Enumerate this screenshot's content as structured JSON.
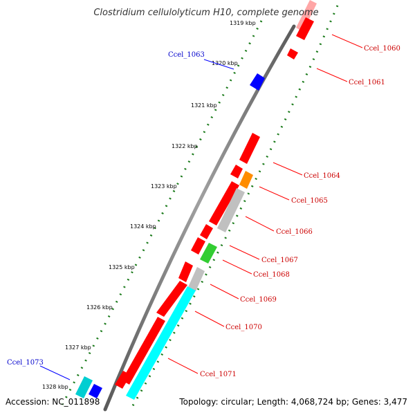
{
  "title": "Clostridium cellulolyticum H10, complete genome",
  "accession": "Accession: NC_011898",
  "summary": "Topology: circular; Length: 4,068,724 bp; Genes: 3,477",
  "colors": {
    "backbone": "#808080",
    "forward_cds": "#ff0000",
    "reverse_cds": "#0000ff",
    "other_gene": "#00ffff",
    "rna": "#ff8c00",
    "misc_feature": "#32cd32",
    "pseudo": "#c0c0c0",
    "ticks": "#1a7a1a",
    "label_red": "#cc0000",
    "label_blue": "#0000cc"
  },
  "scale_labels": [
    "1319 kbp",
    "1320 kbp",
    "1321 kbp",
    "1322 kbp",
    "1323 kbp",
    "1324 kbp",
    "1325 kbp",
    "1326 kbp",
    "1327 kbp",
    "1328 kbp"
  ],
  "gene_labels": [
    {
      "name": "Ccel_1060",
      "strand": "forward"
    },
    {
      "name": "Ccel_1061",
      "strand": "forward"
    },
    {
      "name": "Ccel_1063",
      "strand": "reverse"
    },
    {
      "name": "Ccel_1064",
      "strand": "forward"
    },
    {
      "name": "Ccel_1065",
      "strand": "forward"
    },
    {
      "name": "Ccel_1066",
      "strand": "forward"
    },
    {
      "name": "Ccel_1067",
      "strand": "forward"
    },
    {
      "name": "Ccel_1068",
      "strand": "forward"
    },
    {
      "name": "Ccel_1069",
      "strand": "forward"
    },
    {
      "name": "Ccel_1070",
      "strand": "forward"
    },
    {
      "name": "Ccel_1071",
      "strand": "forward"
    },
    {
      "name": "Ccel_1073",
      "strand": "reverse"
    }
  ]
}
